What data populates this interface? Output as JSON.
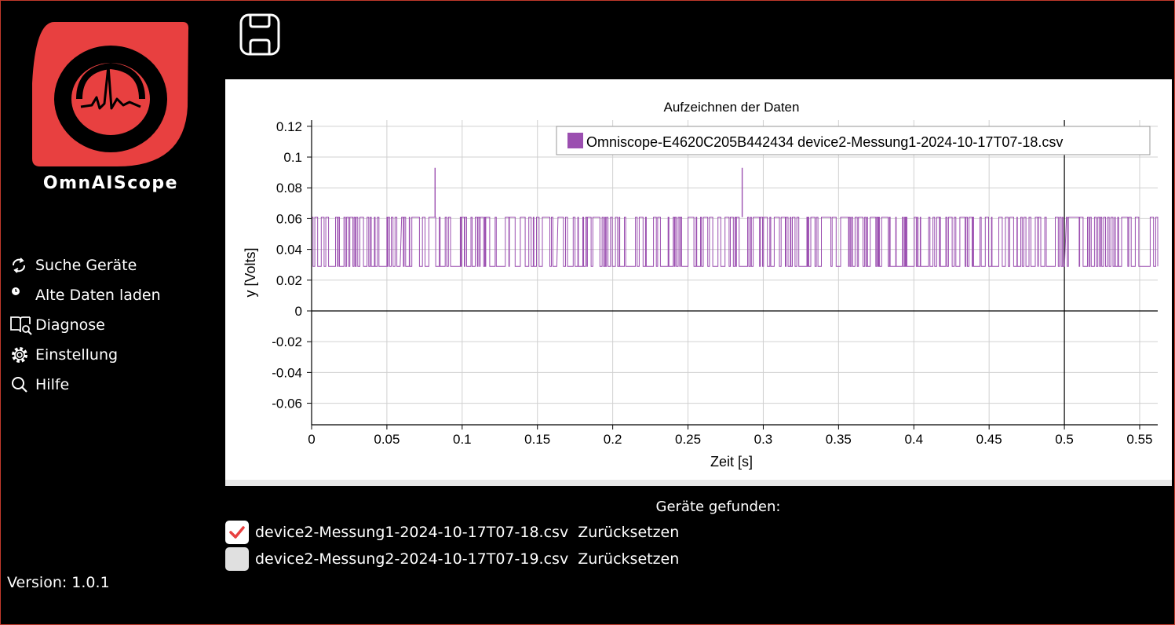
{
  "app": {
    "name": "OmnAIScope",
    "version_label": "Version: 1.0.1",
    "brand_color": "#e84040"
  },
  "sidebar": {
    "items": [
      {
        "label": "Suche Geräte",
        "icon": "refresh-icon"
      },
      {
        "label": "Alte Daten laden",
        "icon": "clock-icon"
      },
      {
        "label": "Diagnose",
        "icon": "book-search-icon"
      },
      {
        "label": "Einstellung",
        "icon": "gear-icon"
      },
      {
        "label": "Hilfe",
        "icon": "search-icon"
      }
    ]
  },
  "toolbar": {
    "save_icon": "save-icon"
  },
  "chart_data": {
    "type": "line",
    "title": "Aufzeichnen der Daten",
    "xlabel": "Zeit [s]",
    "ylabel": "y [Volts]",
    "xlim": [
      0,
      0.562
    ],
    "ylim": [
      -0.074,
      0.124
    ],
    "xticks": [
      0,
      0.05,
      0.1,
      0.15,
      0.2,
      0.25,
      0.3,
      0.35,
      0.4,
      0.45,
      0.5,
      0.55
    ],
    "xtick_labels": [
      "0",
      "0.05",
      "0.1",
      "0.15",
      "0.2",
      "0.25",
      "0.3",
      "0.35",
      "0.4",
      "0.45",
      "0.5",
      "0.55"
    ],
    "yticks": [
      0.12,
      0.1,
      0.08,
      0.06,
      0.04,
      0.02,
      0,
      -0.02,
      -0.04,
      -0.06
    ],
    "ytick_labels": [
      "0.12",
      "0.1",
      "0.08",
      "0.06",
      "0.04",
      "0.02",
      "0",
      "-0.02",
      "-0.04",
      "-0.06"
    ],
    "grid": true,
    "legend_position": "top-right",
    "series": [
      {
        "name": "Omniscope-E4620C205B442434 device2-Messung1-2024-10-17T07-18.csv",
        "color": "#9b4fb0",
        "low": 0.029,
        "high": 0.061,
        "x_range": [
          0,
          0.562
        ],
        "spikes": [
          {
            "x": 0.082,
            "y": 0.093
          },
          {
            "x": 0.286,
            "y": 0.093
          }
        ],
        "gaps": [
          [
            0.0595,
            0.0605
          ],
          [
            0.1635,
            0.167
          ],
          [
            0.2735,
            0.2745
          ],
          [
            0.5005,
            0.5015
          ]
        ]
      }
    ]
  },
  "devices": {
    "title": "Geräte gefunden:",
    "files": [
      {
        "name": "device2-Messung1-2024-10-17T07-18.csv",
        "checked": true,
        "reset_label": "Zurücksetzen"
      },
      {
        "name": "device2-Messung2-2024-10-17T07-19.csv",
        "checked": false,
        "reset_label": "Zurücksetzen"
      }
    ]
  }
}
